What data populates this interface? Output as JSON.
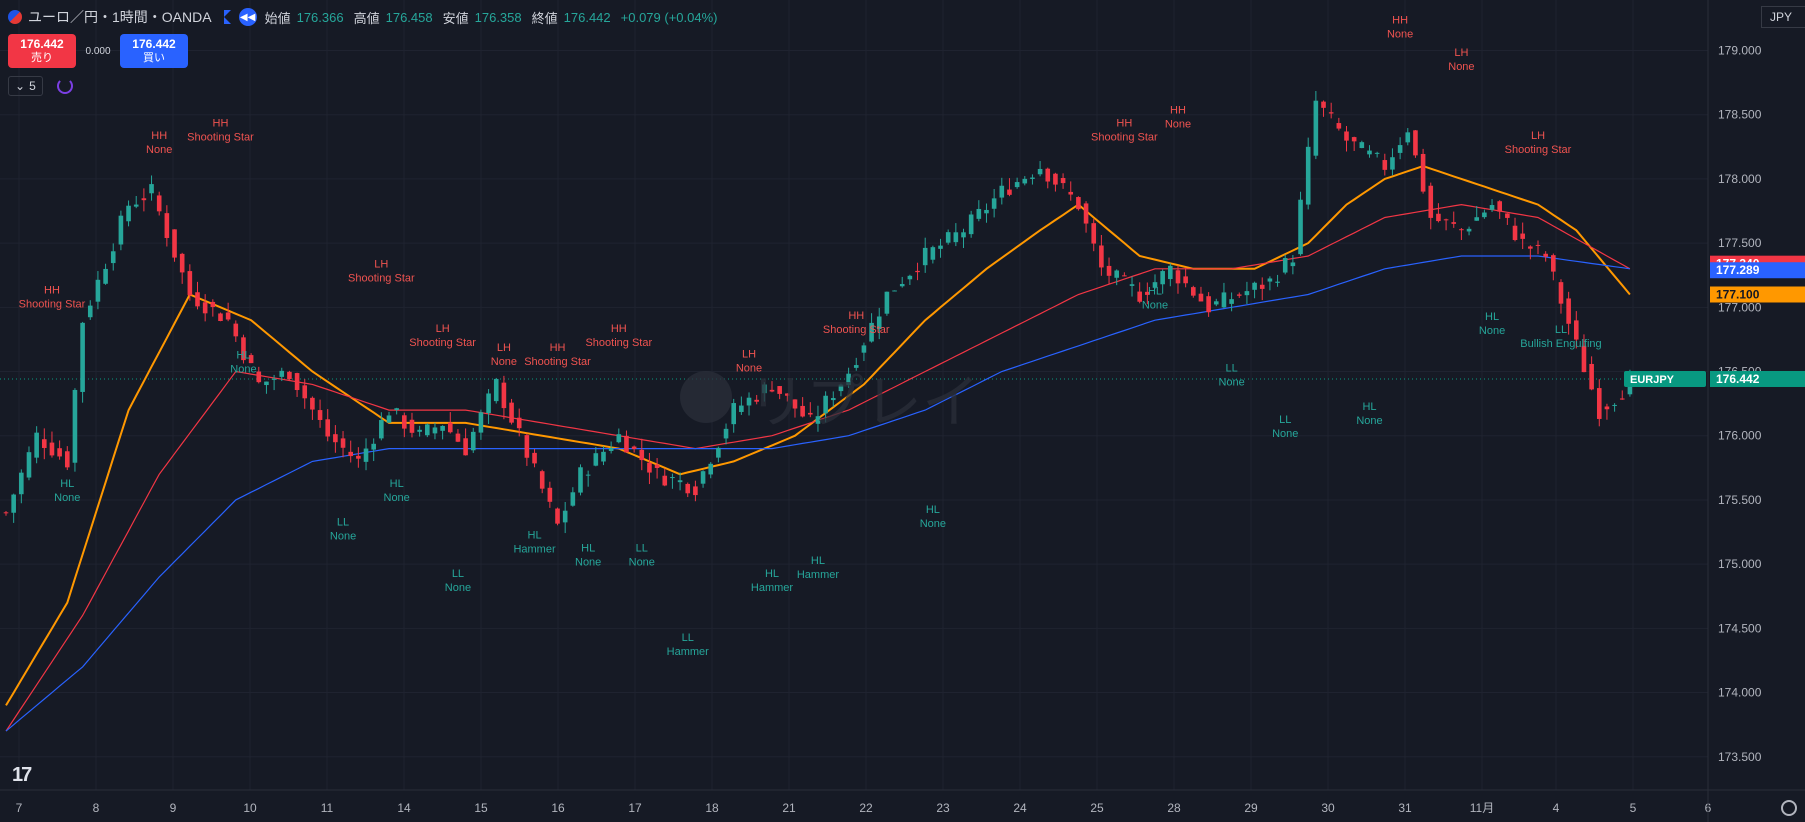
{
  "header": {
    "symbol_name": "ユーロ／円・1時間・OANDA",
    "open_label": "始値",
    "open_value": "176.366",
    "high_label": "高値",
    "high_value": "176.458",
    "low_label": "安値",
    "low_value": "176.358",
    "close_label": "終値",
    "close_value": "176.442",
    "change": "+0.079 (+0.04%)"
  },
  "trade": {
    "sell_price": "176.442",
    "sell_label": "売り",
    "spread": "0.000",
    "buy_price": "176.442",
    "buy_label": "買い"
  },
  "indicator_bar": {
    "collapse_count": "5"
  },
  "currency_button": "JPY",
  "watermark": "リプレイ",
  "colors": {
    "background": "#161a25",
    "up": "#26a69a",
    "down": "#f23645",
    "ma_orange": "#ff9800",
    "ma_red": "#f23645",
    "ma_blue": "#2962ff",
    "grid": "#1f2330"
  },
  "chart_data": {
    "type": "candlestick",
    "symbol": "EURJPY",
    "y_axis": {
      "min": 173.25,
      "max": 179.3,
      "ticks": [
        "179.000",
        "178.500",
        "178.000",
        "177.500",
        "177.000",
        "176.500",
        "176.000",
        "175.500",
        "175.000",
        "174.500",
        "174.000",
        "173.500"
      ]
    },
    "x_axis": {
      "ticks": [
        "7",
        "8",
        "9",
        "10",
        "11",
        "14",
        "15",
        "16",
        "17",
        "18",
        "21",
        "22",
        "23",
        "24",
        "25",
        "28",
        "29",
        "30",
        "31",
        "11月",
        "4",
        "5",
        "6"
      ]
    },
    "price_keypoints": [
      [
        0,
        175.4
      ],
      [
        4,
        176.0
      ],
      [
        8,
        175.8
      ],
      [
        10,
        176.9
      ],
      [
        16,
        177.8
      ],
      [
        19,
        177.9
      ],
      [
        24,
        177.1
      ],
      [
        29,
        176.9
      ],
      [
        33,
        176.4
      ],
      [
        37,
        176.5
      ],
      [
        42,
        176.0
      ],
      [
        46,
        175.8
      ],
      [
        50,
        176.2
      ],
      [
        54,
        176.0
      ],
      [
        57,
        176.1
      ],
      [
        60,
        175.9
      ],
      [
        64,
        176.4
      ],
      [
        67,
        176.0
      ],
      [
        72,
        175.3
      ],
      [
        75,
        175.7
      ],
      [
        80,
        176.0
      ],
      [
        85,
        175.7
      ],
      [
        90,
        175.6
      ],
      [
        95,
        176.2
      ],
      [
        100,
        176.4
      ],
      [
        105,
        176.1
      ],
      [
        110,
        176.5
      ],
      [
        115,
        177.1
      ],
      [
        120,
        177.4
      ],
      [
        125,
        177.6
      ],
      [
        130,
        177.9
      ],
      [
        135,
        178.1
      ],
      [
        140,
        177.8
      ],
      [
        143,
        177.3
      ],
      [
        148,
        177.1
      ],
      [
        152,
        177.3
      ],
      [
        157,
        177.0
      ],
      [
        161,
        177.1
      ],
      [
        165,
        177.2
      ],
      [
        168,
        177.4
      ],
      [
        171,
        178.6
      ],
      [
        175,
        178.3
      ],
      [
        180,
        178.1
      ],
      [
        183,
        178.4
      ],
      [
        186,
        177.7
      ],
      [
        190,
        177.6
      ],
      [
        194,
        177.8
      ],
      [
        198,
        177.5
      ],
      [
        201,
        177.4
      ],
      [
        205,
        176.7
      ],
      [
        208,
        176.2
      ],
      [
        212,
        176.4
      ]
    ],
    "moving_averages": [
      {
        "color": "#ff9800",
        "points": [
          [
            0,
            173.9
          ],
          [
            8,
            174.7
          ],
          [
            16,
            176.2
          ],
          [
            24,
            177.1
          ],
          [
            32,
            176.9
          ],
          [
            40,
            176.5
          ],
          [
            50,
            176.1
          ],
          [
            60,
            176.1
          ],
          [
            70,
            176.0
          ],
          [
            80,
            175.9
          ],
          [
            88,
            175.7
          ],
          [
            95,
            175.8
          ],
          [
            103,
            176.0
          ],
          [
            112,
            176.4
          ],
          [
            120,
            176.9
          ],
          [
            128,
            177.3
          ],
          [
            135,
            177.6
          ],
          [
            140,
            177.8
          ],
          [
            148,
            177.4
          ],
          [
            155,
            177.3
          ],
          [
            163,
            177.3
          ],
          [
            170,
            177.5
          ],
          [
            175,
            177.8
          ],
          [
            180,
            178.0
          ],
          [
            185,
            178.1
          ],
          [
            190,
            178.0
          ],
          [
            195,
            177.9
          ],
          [
            200,
            177.8
          ],
          [
            205,
            177.6
          ],
          [
            212,
            177.1
          ]
        ]
      },
      {
        "color": "#f23645",
        "points": [
          [
            0,
            173.7
          ],
          [
            10,
            174.6
          ],
          [
            20,
            175.7
          ],
          [
            30,
            176.5
          ],
          [
            40,
            176.4
          ],
          [
            50,
            176.2
          ],
          [
            60,
            176.2
          ],
          [
            70,
            176.1
          ],
          [
            80,
            176.0
          ],
          [
            90,
            175.9
          ],
          [
            100,
            176.0
          ],
          [
            110,
            176.2
          ],
          [
            120,
            176.5
          ],
          [
            130,
            176.8
          ],
          [
            140,
            177.1
          ],
          [
            150,
            177.3
          ],
          [
            160,
            177.3
          ],
          [
            170,
            177.4
          ],
          [
            180,
            177.7
          ],
          [
            190,
            177.8
          ],
          [
            200,
            177.7
          ],
          [
            212,
            177.3
          ]
        ]
      },
      {
        "color": "#2962ff",
        "points": [
          [
            0,
            173.7
          ],
          [
            10,
            174.2
          ],
          [
            20,
            174.9
          ],
          [
            30,
            175.5
          ],
          [
            40,
            175.8
          ],
          [
            50,
            175.9
          ],
          [
            60,
            175.9
          ],
          [
            70,
            175.9
          ],
          [
            80,
            175.9
          ],
          [
            90,
            175.9
          ],
          [
            100,
            175.9
          ],
          [
            110,
            176.0
          ],
          [
            120,
            176.2
          ],
          [
            130,
            176.5
          ],
          [
            140,
            176.7
          ],
          [
            150,
            176.9
          ],
          [
            160,
            177.0
          ],
          [
            170,
            177.1
          ],
          [
            180,
            177.3
          ],
          [
            190,
            177.4
          ],
          [
            200,
            177.4
          ],
          [
            212,
            177.3
          ]
        ]
      }
    ],
    "last_price": "176.442",
    "price_labels": [
      {
        "value": "177.340",
        "price": 177.34,
        "color": "#f23645"
      },
      {
        "value": "177.289",
        "price": 177.289,
        "color": "#2962ff"
      },
      {
        "value": "177.100",
        "price": 177.1,
        "color": "#ff9800"
      },
      {
        "value": "176.442",
        "price": 176.442,
        "color": "#089981"
      }
    ],
    "annotations": [
      {
        "l1": "HH",
        "l2": "Shooting Star",
        "x": 6,
        "price": 177.0,
        "kind": "high"
      },
      {
        "l1": "HL",
        "l2": "None",
        "x": 8,
        "price": 175.6,
        "kind": "low"
      },
      {
        "l1": "HH",
        "l2": "None",
        "x": 20,
        "price": 178.2,
        "kind": "high"
      },
      {
        "l1": "HH",
        "l2": "Shooting Star",
        "x": 28,
        "price": 178.3,
        "kind": "high"
      },
      {
        "l1": "HL",
        "l2": "None",
        "x": 31,
        "price": 176.6,
        "kind": "low"
      },
      {
        "l1": "LH",
        "l2": "Shooting Star",
        "x": 49,
        "price": 177.2,
        "kind": "high"
      },
      {
        "l1": "LL",
        "l2": "None",
        "x": 44,
        "price": 175.3,
        "kind": "low"
      },
      {
        "l1": "HL",
        "l2": "None",
        "x": 51,
        "price": 175.6,
        "kind": "low"
      },
      {
        "l1": "LH",
        "l2": "Shooting Star",
        "x": 57,
        "price": 176.7,
        "kind": "high"
      },
      {
        "l1": "LL",
        "l2": "None",
        "x": 59,
        "price": 174.9,
        "kind": "low"
      },
      {
        "l1": "LH",
        "l2": "None",
        "x": 65,
        "price": 176.55,
        "kind": "high"
      },
      {
        "l1": "HH",
        "l2": "Shooting Star",
        "x": 72,
        "price": 176.55,
        "kind": "high"
      },
      {
        "l1": "HL",
        "l2": "Hammer",
        "x": 69,
        "price": 175.2,
        "kind": "low"
      },
      {
        "l1": "HL",
        "l2": "None",
        "x": 76,
        "price": 175.1,
        "kind": "low"
      },
      {
        "l1": "HH",
        "l2": "Shooting Star",
        "x": 80,
        "price": 176.7,
        "kind": "high"
      },
      {
        "l1": "LL",
        "l2": "None",
        "x": 83,
        "price": 175.1,
        "kind": "low"
      },
      {
        "l1": "LL",
        "l2": "Hammer",
        "x": 89,
        "price": 174.4,
        "kind": "low"
      },
      {
        "l1": "LH",
        "l2": "None",
        "x": 97,
        "price": 176.5,
        "kind": "high"
      },
      {
        "l1": "HL",
        "l2": "Hammer",
        "x": 100,
        "price": 174.9,
        "kind": "low"
      },
      {
        "l1": "HL",
        "l2": "Hammer",
        "x": 106,
        "price": 175.0,
        "kind": "low"
      },
      {
        "l1": "HH",
        "l2": "Shooting Star",
        "x": 111,
        "price": 176.8,
        "kind": "high"
      },
      {
        "l1": "HL",
        "l2": "None",
        "x": 121,
        "price": 175.4,
        "kind": "low"
      },
      {
        "l1": "HH",
        "l2": "Shooting Star",
        "x": 146,
        "price": 178.3,
        "kind": "high"
      },
      {
        "l1": "HH",
        "l2": "None",
        "x": 153,
        "price": 178.4,
        "kind": "high"
      },
      {
        "l1": "HL",
        "l2": "None",
        "x": 150,
        "price": 177.1,
        "kind": "low"
      },
      {
        "l1": "LL",
        "l2": "None",
        "x": 160,
        "price": 176.5,
        "kind": "low"
      },
      {
        "l1": "LL",
        "l2": "None",
        "x": 167,
        "price": 176.1,
        "kind": "low"
      },
      {
        "l1": "HL",
        "l2": "None",
        "x": 178,
        "price": 176.2,
        "kind": "low"
      },
      {
        "l1": "HH",
        "l2": "None",
        "x": 182,
        "price": 179.1,
        "kind": "high"
      },
      {
        "l1": "LH",
        "l2": "None",
        "x": 190,
        "price": 178.85,
        "kind": "high"
      },
      {
        "l1": "LH",
        "l2": "Shooting Star",
        "x": 200,
        "price": 178.2,
        "kind": "high"
      },
      {
        "l1": "HL",
        "l2": "None",
        "x": 194,
        "price": 176.9,
        "kind": "low"
      },
      {
        "l1": "LL",
        "l2": "Bullish Engulfing",
        "x": 203,
        "price": 176.8,
        "kind": "low"
      }
    ],
    "grid": true
  }
}
